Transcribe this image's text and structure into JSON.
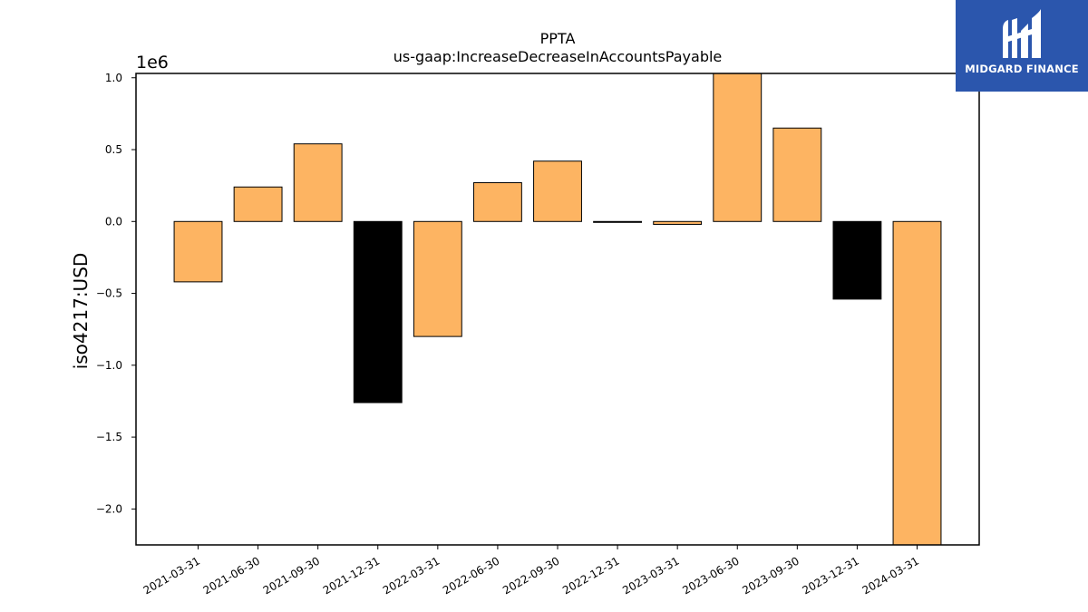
{
  "chart_data": {
    "type": "bar",
    "title": "PPTA",
    "subtitle": "us-gaap:IncreaseDecreaseInAccountsPayable",
    "ylabel": "iso4217:USD",
    "xlabel": "",
    "y_offset_label": "1e6",
    "ylim": [
      -2250000,
      1030000
    ],
    "yticks": [
      1.0,
      0.5,
      0.0,
      -0.5,
      -1.0,
      -1.5,
      -2.0
    ],
    "ytick_labels": [
      "1.0",
      "0.5",
      "0.0",
      "−0.5",
      "−1.0",
      "−1.5",
      "−2.0"
    ],
    "categories": [
      "2021-03-31",
      "2021-06-30",
      "2021-09-30",
      "2021-12-31",
      "2022-03-31",
      "2022-06-30",
      "2022-09-30",
      "2022-12-31",
      "2023-03-31",
      "2023-06-30",
      "2023-09-30",
      "2023-12-31",
      "2024-03-31"
    ],
    "values": [
      -420000,
      240000,
      540000,
      -1260000,
      -800000,
      270000,
      420000,
      -3000,
      -20000,
      1030000,
      650000,
      -540000,
      -2250000
    ],
    "bar_colors": [
      "#fdb462",
      "#fdb462",
      "#fdb462",
      "#000000",
      "#fdb462",
      "#fdb462",
      "#fdb462",
      "#fdb462",
      "#fdb462",
      "#fdb462",
      "#fdb462",
      "#000000",
      "#fdb462"
    ],
    "grid": false,
    "legend": "none"
  },
  "logo": {
    "text": "MIDGARD FINANCE",
    "background": "#2b56ad"
  }
}
